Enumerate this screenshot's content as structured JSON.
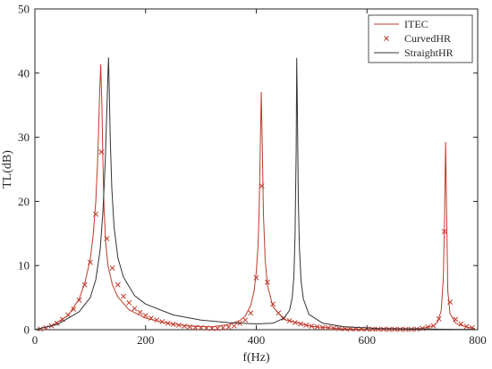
{
  "chart_data": {
    "type": "line",
    "title": "",
    "xlabel": "f(Hz)",
    "ylabel": "TL(dB)",
    "xlim": [
      0,
      800
    ],
    "ylim": [
      0,
      50
    ],
    "xticks": [
      0,
      200,
      400,
      600,
      800
    ],
    "yticks": [
      0,
      10,
      20,
      30,
      40,
      50
    ],
    "grid": false,
    "legend_position": "top-right",
    "series": [
      {
        "name": "ITEC",
        "style": "line",
        "color": "#c0392b",
        "x": [
          2,
          30,
          60,
          80,
          90,
          100,
          105,
          110,
          113,
          115,
          117,
          119,
          121,
          123,
          125,
          128,
          132,
          140,
          150,
          170,
          200,
          240,
          280,
          320,
          350,
          370,
          380,
          390,
          396,
          400,
          403,
          405,
          407,
          409,
          411,
          413,
          416,
          420,
          430,
          450,
          500,
          550,
          600,
          650,
          700,
          720,
          728,
          734,
          738,
          740,
          742,
          744,
          746,
          750,
          760,
          780,
          795
        ],
        "y": [
          0.05,
          0.6,
          2.2,
          4.8,
          7.2,
          11.0,
          14.5,
          20.0,
          25.5,
          31.0,
          37.0,
          41.3,
          35.0,
          26.0,
          19.0,
          13.5,
          10.0,
          7.0,
          5.1,
          3.1,
          1.8,
          1.0,
          0.55,
          0.45,
          0.8,
          1.4,
          2.1,
          3.8,
          6.0,
          9.0,
          13.0,
          18.0,
          27.0,
          37.0,
          28.0,
          18.0,
          11.0,
          7.0,
          3.6,
          1.6,
          0.5,
          0.15,
          0.05,
          0.05,
          0.2,
          0.6,
          1.2,
          3.0,
          8.0,
          17.0,
          29.2,
          17.0,
          6.0,
          2.5,
          1.0,
          0.4,
          0.2
        ]
      },
      {
        "name": "CurvedHR",
        "style": "marker-x",
        "color": "#c0392b",
        "x": [
          10,
          20,
          30,
          40,
          50,
          60,
          70,
          80,
          90,
          100,
          110,
          120,
          130,
          140,
          150,
          160,
          170,
          180,
          190,
          200,
          210,
          220,
          230,
          240,
          250,
          260,
          270,
          280,
          290,
          300,
          310,
          320,
          330,
          340,
          350,
          360,
          370,
          380,
          390,
          400,
          410,
          420,
          430,
          440,
          450,
          460,
          470,
          480,
          490,
          500,
          510,
          520,
          530,
          540,
          550,
          560,
          570,
          580,
          590,
          600,
          610,
          620,
          630,
          640,
          650,
          660,
          670,
          680,
          690,
          700,
          710,
          720,
          730,
          740,
          750,
          760,
          770,
          780,
          790
        ],
        "y": [
          0.1,
          0.3,
          0.6,
          1.0,
          1.6,
          2.3,
          3.2,
          4.6,
          7.0,
          10.5,
          18.0,
          27.7,
          14.2,
          9.6,
          7.0,
          5.2,
          4.2,
          3.3,
          2.7,
          2.2,
          1.8,
          1.5,
          1.25,
          1.0,
          0.85,
          0.7,
          0.55,
          0.45,
          0.35,
          0.3,
          0.25,
          0.2,
          0.2,
          0.3,
          0.4,
          0.6,
          1.0,
          1.5,
          2.6,
          8.1,
          22.4,
          7.4,
          4.0,
          2.6,
          1.8,
          1.4,
          1.1,
          0.9,
          0.7,
          0.55,
          0.45,
          0.35,
          0.3,
          0.25,
          0.2,
          0.15,
          0.12,
          0.1,
          0.1,
          0.08,
          0.08,
          0.06,
          0.06,
          0.05,
          0.05,
          0.05,
          0.05,
          0.05,
          0.1,
          0.2,
          0.4,
          0.6,
          1.7,
          15.3,
          4.3,
          1.6,
          0.9,
          0.5,
          0.3
        ]
      },
      {
        "name": "StraightHR",
        "style": "line",
        "color": "#333333",
        "x": [
          2,
          40,
          80,
          100,
          110,
          118,
          123,
          127,
          130,
          132,
          133,
          134,
          136,
          139,
          143,
          150,
          160,
          180,
          200,
          250,
          300,
          350,
          400,
          430,
          450,
          460,
          465,
          468,
          470,
          472,
          473,
          474,
          476,
          478,
          481,
          485,
          495,
          520,
          560,
          620,
          700,
          760,
          795
        ],
        "y": [
          0.05,
          0.8,
          2.8,
          5.0,
          7.8,
          12.5,
          18.5,
          26.0,
          34.0,
          40.0,
          42.4,
          39.0,
          30.0,
          22.0,
          16.0,
          11.2,
          8.2,
          5.3,
          4.0,
          2.3,
          1.5,
          1.1,
          0.9,
          1.0,
          1.8,
          3.0,
          5.0,
          8.5,
          14.5,
          28.0,
          42.3,
          36.0,
          20.0,
          12.5,
          7.5,
          4.8,
          2.4,
          1.0,
          0.45,
          0.2,
          0.1,
          0.05,
          0.05
        ]
      }
    ]
  }
}
